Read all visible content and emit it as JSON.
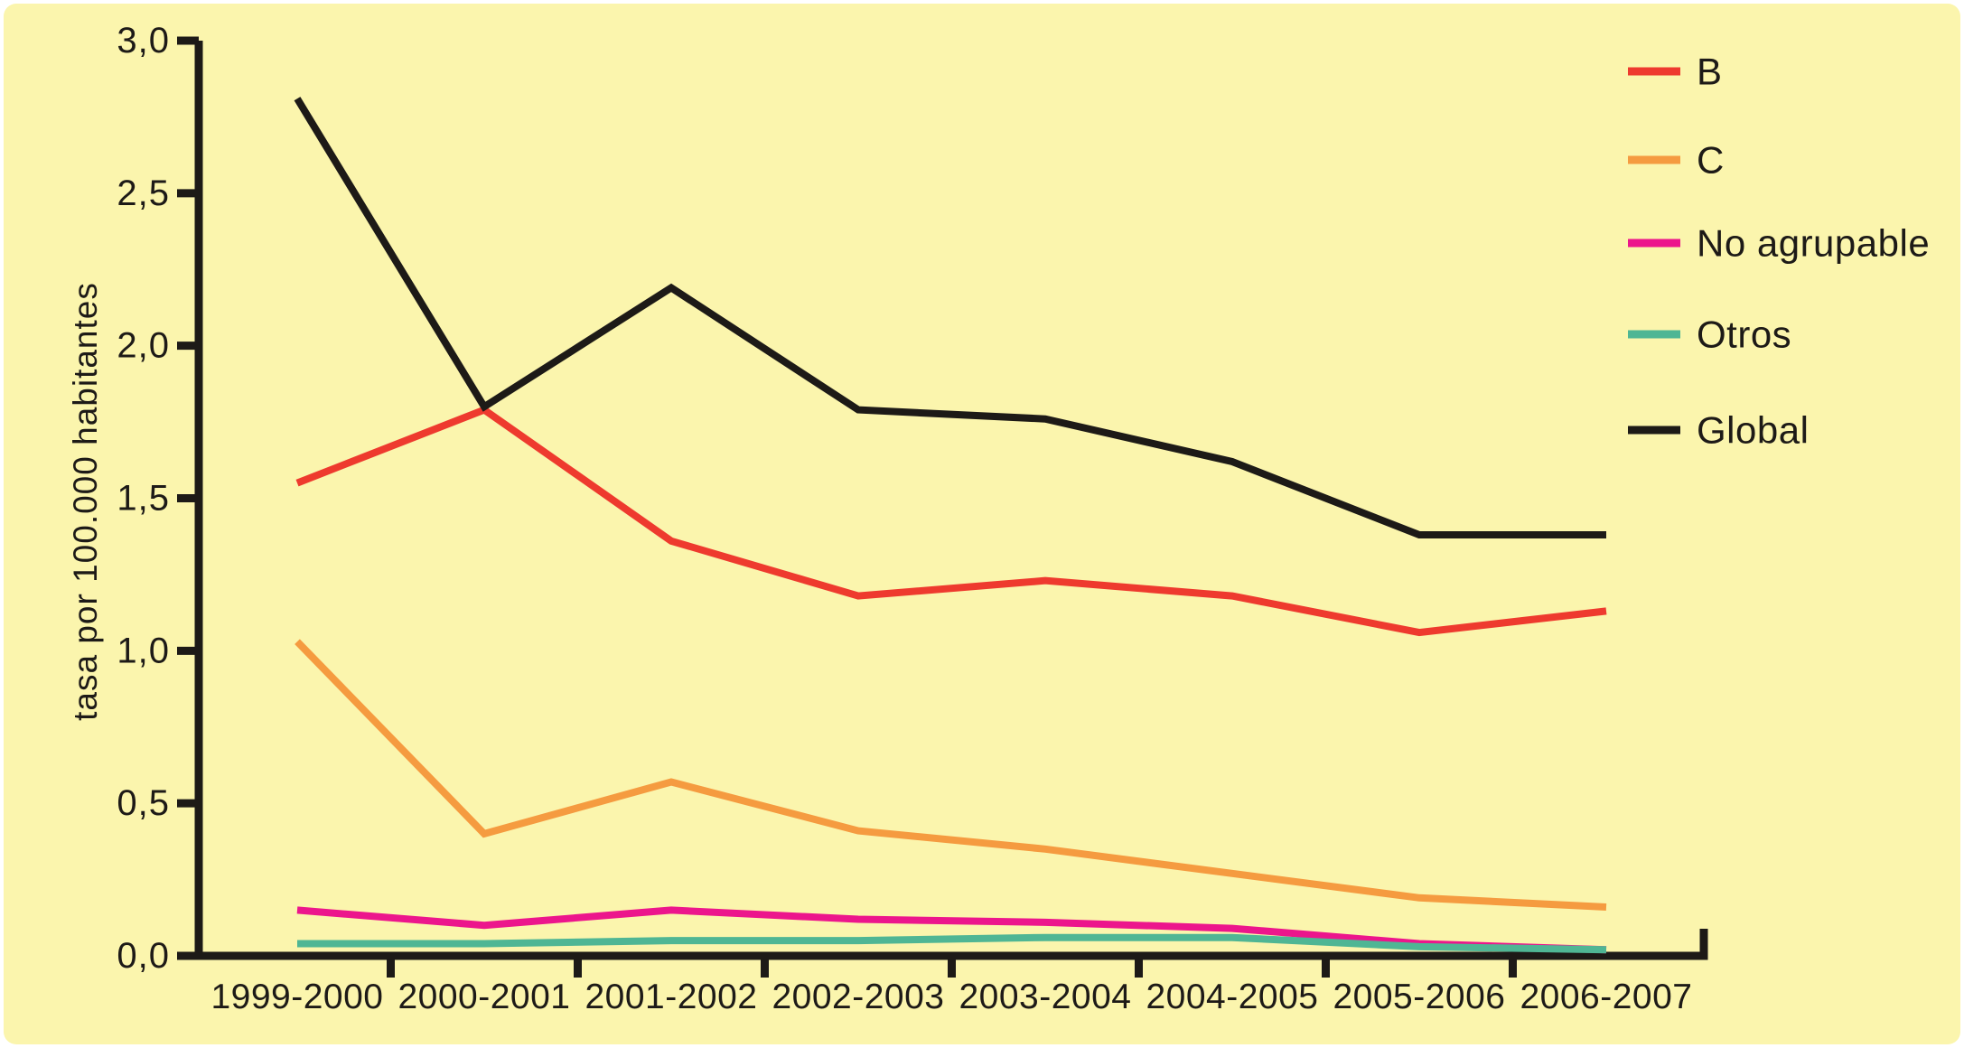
{
  "chart_data": {
    "type": "line",
    "title": "",
    "xlabel": "",
    "ylabel": "tasa por 100.000 habitantes",
    "ylim": [
      0.0,
      3.0
    ],
    "grid": false,
    "legend_position": "top-right",
    "background_color": "#FBF5AD",
    "axis_color": "#1D1A17",
    "categories": [
      "1999-2000",
      "2000-2001",
      "2001-2002",
      "2002-2003",
      "2003-2004",
      "2004-2005",
      "2005-2006",
      "2006-2007"
    ],
    "yticks": [
      {
        "value": 0.0,
        "label": "0,0"
      },
      {
        "value": 0.5,
        "label": "0,5"
      },
      {
        "value": 1.0,
        "label": "1,0"
      },
      {
        "value": 1.5,
        "label": "1,5"
      },
      {
        "value": 2.0,
        "label": "2,0"
      },
      {
        "value": 2.5,
        "label": "2,5"
      },
      {
        "value": 3.0,
        "label": "3,0"
      }
    ],
    "series": [
      {
        "name": "B",
        "color": "#EE3A2E",
        "values": [
          1.55,
          1.79,
          1.36,
          1.18,
          1.23,
          1.18,
          1.06,
          1.13
        ]
      },
      {
        "name": "C",
        "color": "#F59B40",
        "values": [
          1.03,
          0.4,
          0.57,
          0.41,
          0.35,
          0.27,
          0.19,
          0.16
        ]
      },
      {
        "name": "No agrupable",
        "color": "#EC168C",
        "values": [
          0.15,
          0.1,
          0.15,
          0.12,
          0.11,
          0.09,
          0.04,
          0.02
        ]
      },
      {
        "name": "Otros",
        "color": "#4FB694",
        "values": [
          0.04,
          0.04,
          0.05,
          0.05,
          0.06,
          0.06,
          0.03,
          0.02
        ]
      },
      {
        "name": "Global",
        "color": "#1D1A17",
        "values": [
          2.81,
          1.8,
          2.19,
          1.79,
          1.76,
          1.62,
          1.38,
          1.38
        ]
      }
    ]
  }
}
